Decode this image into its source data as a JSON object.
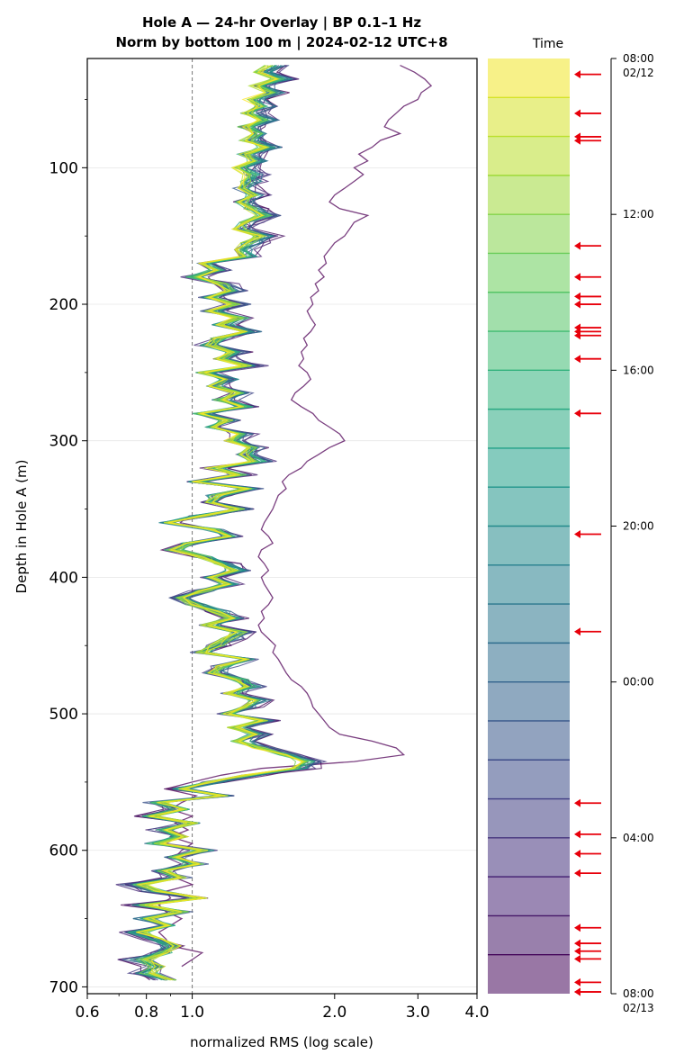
{
  "chart_data": {
    "type": "line",
    "title": "Hole A — 24-hr Overlay  |  BP 0.1–1 Hz",
    "subtitle": "Norm by bottom 100 m  |  2024-02-12 UTC+8",
    "xlabel": "normalized RMS  (log scale)",
    "ylabel": "Depth in Hole A (m)",
    "x_scale": "log",
    "xlim": [
      0.6,
      4.0
    ],
    "ylim": [
      705,
      20
    ],
    "y_inverted": true,
    "x_ticks": [
      0.6,
      0.8,
      1.0,
      2.0,
      3.0,
      4.0
    ],
    "x_tick_labels": [
      "0.6",
      "0.8",
      "1.0",
      "2.0",
      "3.0",
      "4.0"
    ],
    "y_ticks": [
      100,
      200,
      300,
      400,
      500,
      600,
      700
    ],
    "y_tick_labels": [
      "100",
      "200",
      "300",
      "400",
      "500",
      "600",
      "700"
    ],
    "reference_line_x": 1.0,
    "grid": "horizontal",
    "colormap": "viridis",
    "outlier_color": "#6b2a72",
    "depth": [
      25,
      30,
      35,
      40,
      45,
      50,
      55,
      60,
      65,
      70,
      75,
      80,
      85,
      90,
      95,
      100,
      105,
      110,
      115,
      120,
      125,
      130,
      135,
      140,
      145,
      150,
      155,
      160,
      165,
      170,
      175,
      180,
      185,
      190,
      195,
      200,
      205,
      210,
      215,
      220,
      225,
      230,
      235,
      240,
      245,
      250,
      255,
      260,
      265,
      270,
      275,
      280,
      285,
      290,
      295,
      300,
      305,
      310,
      315,
      320,
      325,
      330,
      335,
      340,
      345,
      350,
      355,
      360,
      365,
      370,
      375,
      380,
      385,
      390,
      395,
      400,
      405,
      410,
      415,
      420,
      425,
      430,
      435,
      440,
      445,
      450,
      455,
      460,
      465,
      470,
      475,
      480,
      485,
      490,
      495,
      500,
      505,
      510,
      515,
      520,
      525,
      530,
      535,
      540,
      545,
      550,
      555,
      560,
      565,
      570,
      575,
      580,
      585,
      590,
      595,
      600,
      605,
      610,
      615,
      620,
      625,
      630,
      635,
      640,
      645,
      650,
      655,
      660,
      665,
      670,
      675,
      680,
      685,
      690,
      695
    ],
    "typical_profile": [
      1.45,
      1.38,
      1.5,
      1.35,
      1.45,
      1.32,
      1.38,
      1.3,
      1.4,
      1.28,
      1.35,
      1.3,
      1.42,
      1.28,
      1.35,
      1.25,
      1.32,
      1.3,
      1.26,
      1.34,
      1.26,
      1.32,
      1.4,
      1.28,
      1.25,
      1.38,
      1.3,
      1.25,
      1.28,
      1.05,
      1.12,
      1.02,
      1.15,
      1.2,
      1.08,
      1.22,
      1.1,
      1.25,
      1.15,
      1.3,
      1.12,
      1.08,
      1.22,
      1.15,
      1.3,
      1.05,
      1.18,
      1.1,
      1.24,
      1.15,
      1.28,
      1.05,
      1.18,
      1.1,
      1.25,
      1.2,
      1.32,
      1.28,
      1.35,
      1.1,
      1.25,
      1.02,
      1.3,
      1.12,
      1.08,
      1.25,
      1.05,
      0.9,
      1.1,
      1.2,
      0.98,
      0.92,
      1.05,
      1.15,
      1.22,
      1.08,
      1.18,
      1.05,
      0.95,
      1.02,
      1.12,
      1.2,
      1.08,
      1.25,
      1.18,
      1.12,
      1.05,
      1.28,
      1.15,
      1.1,
      1.25,
      1.3,
      1.2,
      1.35,
      1.28,
      1.18,
      1.4,
      1.22,
      1.35,
      1.25,
      1.38,
      1.55,
      1.7,
      1.62,
      1.3,
      1.1,
      0.95,
      1.15,
      0.85,
      0.95,
      0.82,
      1.0,
      0.88,
      0.95,
      0.85,
      1.05,
      0.92,
      1.02,
      0.88,
      0.95,
      0.78,
      0.85,
      1.05,
      0.8,
      0.95,
      0.82,
      0.9,
      0.78,
      0.85,
      0.92,
      0.88,
      0.8,
      0.85,
      0.82,
      0.9
    ],
    "outlier_profile": [
      2.75,
      2.95,
      3.1,
      3.2,
      3.05,
      3.0,
      2.8,
      2.7,
      2.6,
      2.55,
      2.75,
      2.5,
      2.4,
      2.25,
      2.35,
      2.2,
      2.3,
      2.2,
      2.1,
      2.0,
      1.95,
      2.05,
      2.35,
      2.2,
      2.15,
      2.1,
      2.0,
      1.95,
      1.9,
      1.92,
      1.85,
      1.9,
      1.82,
      1.85,
      1.78,
      1.8,
      1.75,
      1.78,
      1.82,
      1.78,
      1.72,
      1.75,
      1.7,
      1.72,
      1.68,
      1.75,
      1.78,
      1.72,
      1.65,
      1.62,
      1.7,
      1.8,
      1.85,
      1.95,
      2.05,
      2.1,
      1.95,
      1.85,
      1.75,
      1.7,
      1.6,
      1.55,
      1.58,
      1.52,
      1.5,
      1.48,
      1.45,
      1.42,
      1.4,
      1.45,
      1.48,
      1.4,
      1.38,
      1.42,
      1.45,
      1.4,
      1.42,
      1.45,
      1.48,
      1.45,
      1.4,
      1.42,
      1.38,
      1.4,
      1.45,
      1.5,
      1.48,
      1.52,
      1.55,
      1.58,
      1.62,
      1.7,
      1.75,
      1.78,
      1.8,
      1.85,
      1.9,
      1.95,
      2.05,
      2.4,
      2.7,
      2.8,
      2.2,
      1.4,
      1.15,
      1.0,
      0.88,
      1.02,
      0.95,
      0.9,
      1.0,
      0.92,
      0.98,
      0.9,
      1.0,
      0.95,
      0.92,
      0.98,
      0.85,
      0.92,
      1.0,
      0.88,
      0.9,
      0.85,
      0.88,
      0.95,
      0.9,
      0.85,
      0.88,
      0.9,
      1.05,
      1.0,
      0.95
    ],
    "num_hourly_profiles": 25,
    "legend": {
      "type": "colorbar",
      "title": "Time",
      "tick_labels": [
        "08:00\n02/12",
        "12:00",
        "16:00",
        "20:00",
        "00:00",
        "04:00",
        "08:00\n02/13"
      ],
      "tick_hours": [
        0,
        4,
        8,
        12,
        16,
        20,
        24
      ],
      "segments": 24
    },
    "arrow_marks_hours": [
      0.2,
      1.2,
      1.8,
      1.9,
      4.6,
      5.4,
      5.9,
      6.1,
      6.7,
      6.8,
      6.9,
      7.5,
      8.9,
      12.0,
      14.5,
      18.9,
      19.7,
      20.2,
      20.7,
      22.1,
      22.5,
      22.7,
      22.9,
      23.5,
      23.8,
      24.0
    ],
    "arrow_color": "#e8000b"
  }
}
